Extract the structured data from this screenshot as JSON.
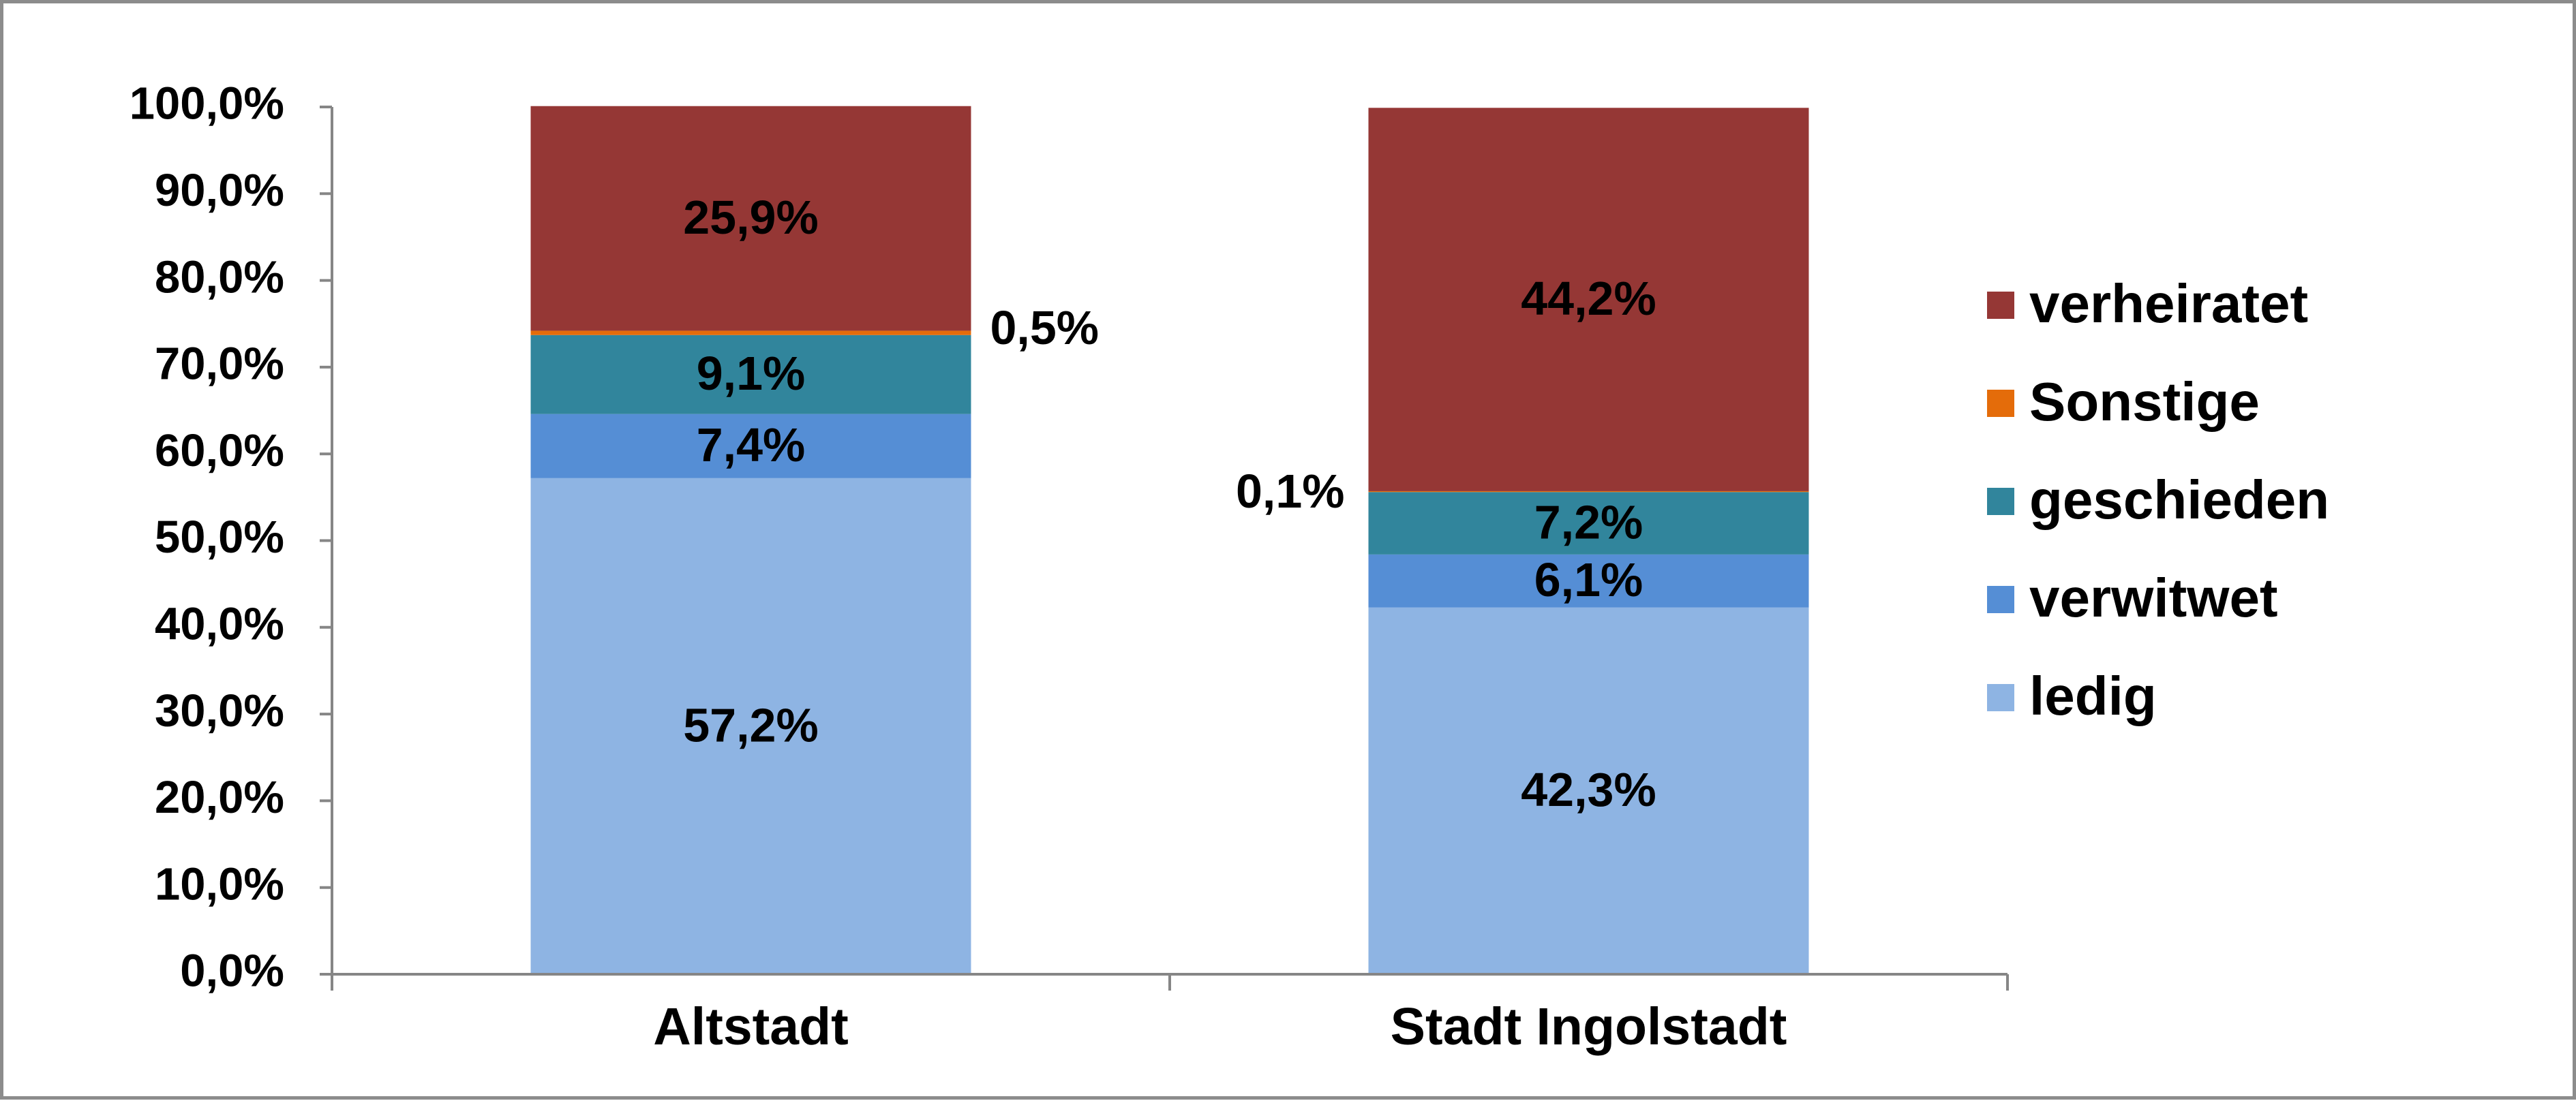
{
  "chart_data": {
    "type": "bar",
    "stacked": true,
    "categories": [
      "Altstadt",
      "Stadt Ingolstadt"
    ],
    "series": [
      {
        "name": "ledig",
        "values": [
          57.2,
          42.3
        ],
        "labels": [
          "57,2%",
          "42,3%"
        ],
        "color": "#8EB4E3"
      },
      {
        "name": "verwitwet",
        "values": [
          7.4,
          6.1
        ],
        "labels": [
          "7,4%",
          "6,1%"
        ],
        "color": "#558ED5"
      },
      {
        "name": "geschieden",
        "values": [
          9.1,
          7.2
        ],
        "labels": [
          "9,1%",
          "7,2%"
        ],
        "color": "#31859C"
      },
      {
        "name": "Sonstige",
        "values": [
          0.5,
          0.1
        ],
        "labels": [
          "0,5%",
          "0,1%"
        ],
        "color": "#E46C0A"
      },
      {
        "name": "verheiratet",
        "values": [
          25.9,
          44.2
        ],
        "labels": [
          "25,9%",
          "44,2%"
        ],
        "color": "#953735"
      }
    ],
    "ylim": [
      0,
      100
    ],
    "yticks": [
      0,
      10,
      20,
      30,
      40,
      50,
      60,
      70,
      80,
      90,
      100
    ],
    "ytick_labels": [
      "0,0%",
      "10,0%",
      "20,0%",
      "30,0%",
      "40,0%",
      "50,0%",
      "60,0%",
      "70,0%",
      "80,0%",
      "90,0%",
      "100,0%"
    ],
    "legend_order": [
      "verheiratet",
      "Sonstige",
      "geschieden",
      "verwitwet",
      "ledig"
    ],
    "legend_position": "right",
    "grid": false,
    "title": "",
    "xlabel": "",
    "ylabel": "",
    "axis_color": "#868686"
  }
}
